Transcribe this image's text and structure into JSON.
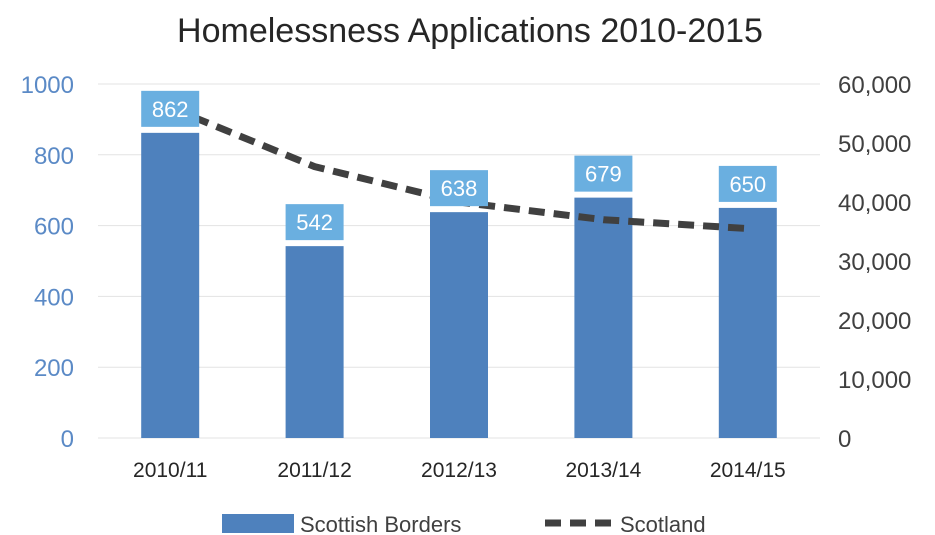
{
  "chart_data": {
    "type": "bar",
    "title": "Homelessness Applications 2010-2015",
    "categories": [
      "2010/11",
      "2011/12",
      "2012/13",
      "2013/14",
      "2014/15"
    ],
    "series": [
      {
        "name": "Scottish Borders",
        "type": "bar",
        "axis": "left",
        "values": [
          862,
          542,
          638,
          679,
          650
        ],
        "color": "#4e81bd"
      },
      {
        "name": "Scotland",
        "type": "line",
        "style": "dashed",
        "axis": "right",
        "values": [
          56000,
          46000,
          40000,
          37000,
          35500
        ],
        "color": "#404040"
      }
    ],
    "left_axis": {
      "min": 0,
      "max": 1000,
      "ticks": [
        "0",
        "200",
        "400",
        "600",
        "800",
        "1000"
      ],
      "color": "#5b8ac6"
    },
    "right_axis": {
      "min": 0,
      "max": 60000,
      "ticks": [
        "0",
        "10,000",
        "20,000",
        "30,000",
        "40,000",
        "50,000",
        "60,000"
      ]
    },
    "data_labels": [
      "862",
      "542",
      "638",
      "679",
      "650"
    ],
    "label_color": "#6aafe0",
    "grid": true,
    "legend_position": "bottom"
  }
}
